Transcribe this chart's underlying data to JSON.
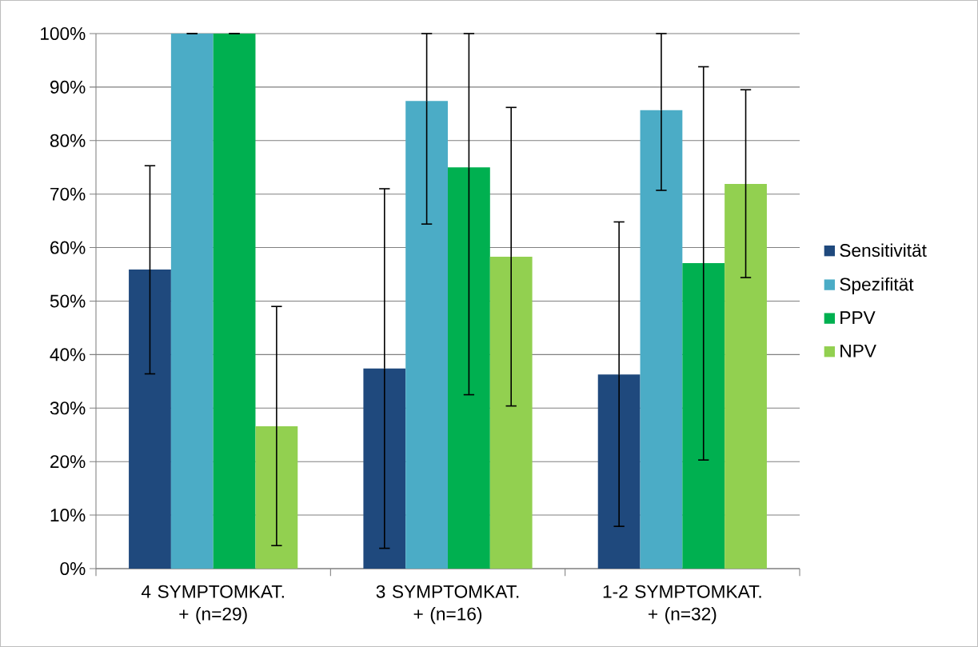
{
  "chart_data": {
    "type": "bar",
    "categories": [
      "4 SYMPTOMKAT. + (n=29)",
      "3 SYMPTOMKAT. + (n=16)",
      "1-2 SYMPTOMKAT. + (n=32)"
    ],
    "series": [
      {
        "name": "Sensitivität",
        "color": "#1f497d",
        "values": [
          55.9,
          37.4,
          36.3
        ],
        "errors": [
          [
            36.4,
            75.3
          ],
          [
            3.8,
            71.0
          ],
          [
            7.9,
            64.8
          ]
        ]
      },
      {
        "name": "Spezifität",
        "color": "#4bacc6",
        "values": [
          100,
          87.4,
          85.7
        ],
        "errors": [
          [
            100,
            100
          ],
          [
            64.4,
            100
          ],
          [
            70.7,
            100
          ]
        ]
      },
      {
        "name": "PPV",
        "color": "#00b050",
        "values": [
          100,
          75.0,
          57.1
        ],
        "errors": [
          [
            100,
            100
          ],
          [
            32.5,
            100
          ],
          [
            20.3,
            93.8
          ]
        ]
      },
      {
        "name": "NPV",
        "color": "#92d050",
        "values": [
          26.6,
          58.3,
          71.9
        ],
        "errors": [
          [
            4.3,
            49.0
          ],
          [
            30.4,
            86.2
          ],
          [
            54.4,
            89.5
          ]
        ]
      }
    ],
    "ylim": [
      0,
      100
    ],
    "yticks": [
      {
        "value": 0,
        "label": "0%"
      },
      {
        "value": 10,
        "label": "10%"
      },
      {
        "value": 20,
        "label": "20%"
      },
      {
        "value": 30,
        "label": "30%"
      },
      {
        "value": 40,
        "label": "40%"
      },
      {
        "value": 50,
        "label": "50%"
      },
      {
        "value": 60,
        "label": "60%"
      },
      {
        "value": 70,
        "label": "70%"
      },
      {
        "value": 80,
        "label": "80%"
      },
      {
        "value": 90,
        "label": "90%"
      },
      {
        "value": 100,
        "label": "100%"
      }
    ],
    "grid": "y",
    "legend": "right"
  }
}
